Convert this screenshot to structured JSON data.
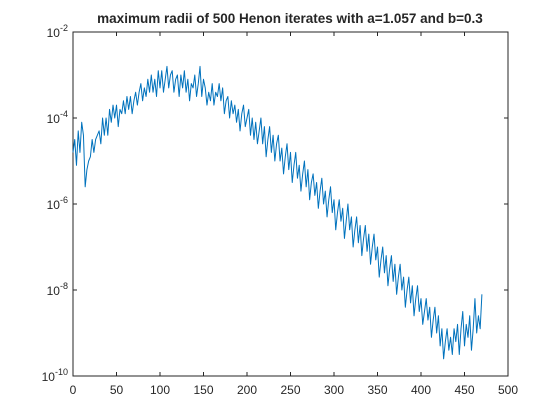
{
  "chart_data": {
    "type": "line",
    "title": "maximum radii of 500 Henon iterates with a=1.057 and b=0.3",
    "xlabel": "",
    "ylabel": "",
    "xlim": [
      0,
      500
    ],
    "ylim": [
      1e-10,
      0.01
    ],
    "yscale": "log",
    "grid": false,
    "x_ticks": [
      "0",
      "50",
      "100",
      "150",
      "200",
      "250",
      "300",
      "350",
      "400",
      "450",
      "500"
    ],
    "y_ticks": [
      {
        "base": "10",
        "exp": "-2"
      },
      {
        "base": "10",
        "exp": "-4"
      },
      {
        "base": "10",
        "exp": "-6"
      },
      {
        "base": "10",
        "exp": "-8"
      },
      {
        "base": "10",
        "exp": "-10"
      }
    ],
    "series": [
      {
        "color": "#0072BD",
        "x_start": 0,
        "x_step": 2,
        "log10_values": [
          -4.8,
          -4.5,
          -5.1,
          -4.3,
          -4.8,
          -4.1,
          -4.4,
          -5.6,
          -5.2,
          -5.0,
          -4.9,
          -4.5,
          -4.8,
          -4.5,
          -4.4,
          -4.3,
          -4.6,
          -4.0,
          -4.4,
          -4.0,
          -4.4,
          -3.8,
          -4.1,
          -3.7,
          -4.0,
          -3.7,
          -4.2,
          -3.8,
          -3.9,
          -3.6,
          -3.9,
          -3.5,
          -3.8,
          -3.5,
          -3.9,
          -3.6,
          -3.4,
          -3.7,
          -3.4,
          -3.2,
          -3.6,
          -3.3,
          -3.5,
          -3.1,
          -3.4,
          -3.0,
          -3.4,
          -3.1,
          -3.5,
          -2.9,
          -3.3,
          -2.9,
          -3.4,
          -3.1,
          -2.8,
          -3.3,
          -3.0,
          -2.9,
          -3.4,
          -3.1,
          -3.0,
          -3.5,
          -3.0,
          -3.3,
          -2.9,
          -3.4,
          -3.1,
          -3.6,
          -3.2,
          -3.3,
          -3.0,
          -3.5,
          -3.2,
          -2.8,
          -3.5,
          -3.1,
          -3.3,
          -3.7,
          -3.4,
          -3.6,
          -3.2,
          -3.7,
          -3.4,
          -3.5,
          -3.2,
          -3.6,
          -3.3,
          -3.9,
          -3.6,
          -3.5,
          -4.0,
          -3.6,
          -3.9,
          -3.7,
          -4.1,
          -3.8,
          -4.3,
          -3.9,
          -3.7,
          -4.2,
          -4.0,
          -3.8,
          -4.4,
          -4.0,
          -4.5,
          -4.1,
          -4.6,
          -4.3,
          -4.0,
          -4.6,
          -4.2,
          -4.9,
          -4.5,
          -4.2,
          -4.8,
          -4.4,
          -5.0,
          -4.6,
          -4.4,
          -5.0,
          -4.7,
          -5.3,
          -4.9,
          -4.6,
          -5.2,
          -4.8,
          -5.5,
          -5.1,
          -4.8,
          -5.4,
          -5.1,
          -5.7,
          -5.3,
          -5.0,
          -5.6,
          -5.2,
          -5.9,
          -5.5,
          -5.3,
          -5.8,
          -5.5,
          -6.1,
          -5.7,
          -5.4,
          -6.0,
          -5.7,
          -6.3,
          -5.9,
          -5.6,
          -6.2,
          -5.9,
          -6.6,
          -6.2,
          -5.9,
          -6.4,
          -6.1,
          -6.8,
          -6.4,
          -6.0,
          -6.6,
          -6.3,
          -7.0,
          -6.6,
          -6.3,
          -6.9,
          -6.5,
          -7.2,
          -6.8,
          -6.5,
          -7.1,
          -6.7,
          -7.4,
          -7.0,
          -6.7,
          -7.3,
          -7.0,
          -7.7,
          -7.3,
          -7.0,
          -7.6,
          -7.2,
          -7.9,
          -7.5,
          -7.2,
          -7.8,
          -7.4,
          -8.1,
          -7.7,
          -7.4,
          -8.0,
          -7.7,
          -8.4,
          -8.0,
          -7.7,
          -8.3,
          -7.9,
          -8.6,
          -8.2,
          -7.9,
          -8.5,
          -8.2,
          -8.8,
          -8.5,
          -8.2,
          -8.7,
          -8.4,
          -9.1,
          -8.7,
          -8.4,
          -9.0,
          -8.6,
          -9.3,
          -8.9,
          -9.6,
          -9.2,
          -8.9,
          -9.4,
          -9.1,
          -9.5,
          -8.9,
          -9.2,
          -8.8,
          -9.5,
          -8.9,
          -8.5,
          -9.3,
          -8.8,
          -9.1,
          -8.6,
          -9.4,
          -8.9,
          -8.2,
          -9.0,
          -8.6,
          -8.9,
          -8.1
        ]
      }
    ]
  }
}
